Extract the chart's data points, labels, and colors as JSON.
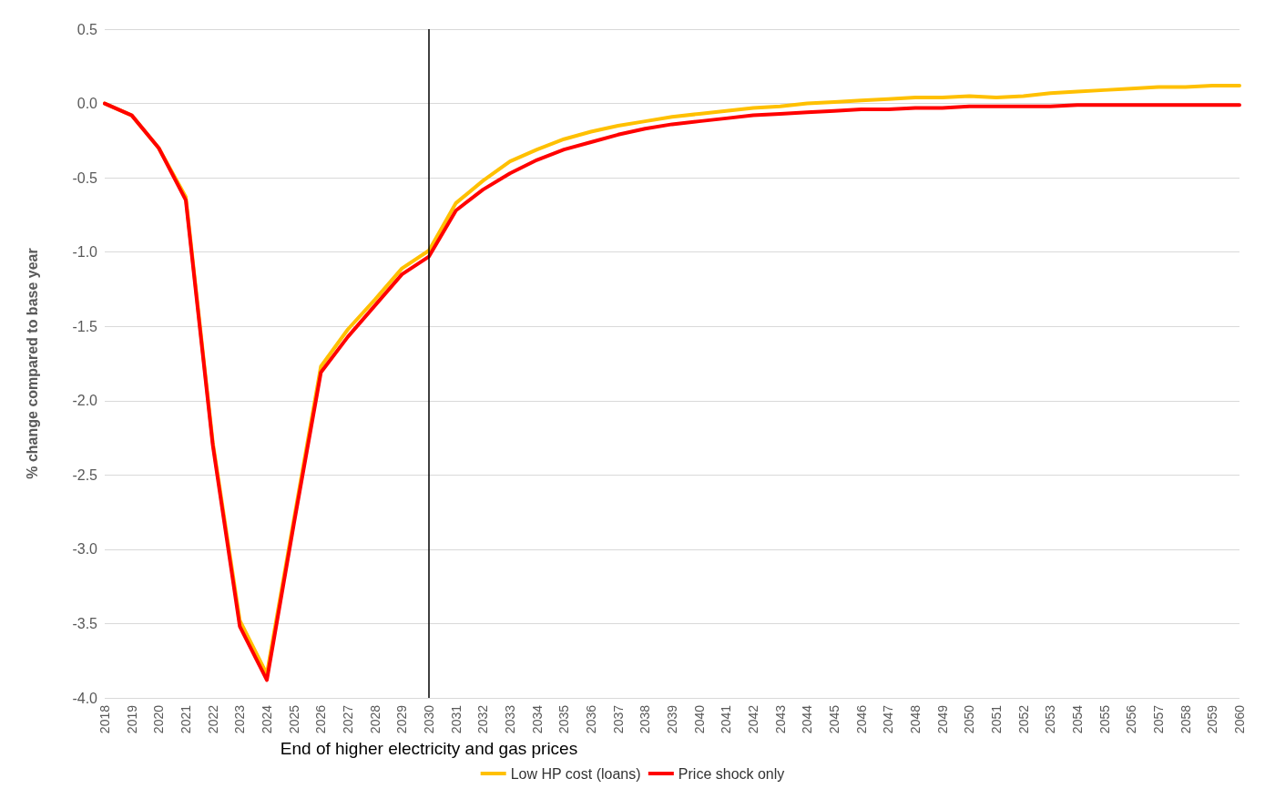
{
  "chart_data": {
    "type": "line",
    "ylabel": "% change compared to base year",
    "categories": [
      "2018",
      "2019",
      "2020",
      "2021",
      "2022",
      "2023",
      "2024",
      "2025",
      "2026",
      "2027",
      "2028",
      "2029",
      "2030",
      "2031",
      "2032",
      "2033",
      "2034",
      "2035",
      "2036",
      "2037",
      "2038",
      "2039",
      "2040",
      "2041",
      "2042",
      "2043",
      "2044",
      "2045",
      "2046",
      "2047",
      "2048",
      "2049",
      "2050",
      "2051",
      "2052",
      "2053",
      "2054",
      "2055",
      "2056",
      "2057",
      "2058",
      "2059",
      "2060"
    ],
    "series": [
      {
        "name": "Low HP cost (loans)",
        "color": "#ffc000",
        "values": [
          0,
          -0.08,
          -0.3,
          -0.63,
          -2.28,
          -3.48,
          -3.84,
          -2.8,
          -1.77,
          -1.52,
          -1.32,
          -1.11,
          -0.99,
          -0.67,
          -0.52,
          -0.39,
          -0.31,
          -0.24,
          -0.19,
          -0.15,
          -0.12,
          -0.09,
          -0.07,
          -0.05,
          -0.03,
          -0.02,
          0,
          0.01,
          0.02,
          0.03,
          0.04,
          0.04,
          0.05,
          0.04,
          0.05,
          0.07,
          0.08,
          0.09,
          0.1,
          0.11,
          0.11,
          0.12,
          0.12
        ]
      },
      {
        "name": "Price shock only",
        "color": "#ff0000",
        "values": [
          0,
          -0.08,
          -0.3,
          -0.65,
          -2.3,
          -3.52,
          -3.88,
          -2.83,
          -1.81,
          -1.57,
          -1.36,
          -1.15,
          -1.03,
          -0.72,
          -0.58,
          -0.47,
          -0.38,
          -0.31,
          -0.26,
          -0.21,
          -0.17,
          -0.14,
          -0.12,
          -0.1,
          -0.08,
          -0.07,
          -0.06,
          -0.05,
          -0.04,
          -0.04,
          -0.03,
          -0.03,
          -0.02,
          -0.02,
          -0.02,
          -0.02,
          -0.01,
          -0.01,
          -0.01,
          -0.01,
          -0.01,
          -0.01,
          -0.01
        ]
      }
    ],
    "ylim": [
      -4,
      0.5
    ],
    "yticks": [
      {
        "value": -4,
        "label": "-4.0"
      },
      -3.5,
      {
        "value": -3,
        "label": "-3.0"
      },
      -2.5,
      {
        "value": -2,
        "label": "-2.0"
      },
      -1.5,
      {
        "value": -1,
        "label": "-1.0"
      },
      -0.5,
      {
        "value": 0,
        "label": "0.0"
      },
      0.5
    ],
    "ref_lines": [
      {
        "axis": "x",
        "value": "2030",
        "label": "End of higher electricity and gas prices",
        "color": "#000000"
      }
    ],
    "grid": "y",
    "legend": "bottom",
    "marker": "none",
    "line_style": "solid"
  }
}
